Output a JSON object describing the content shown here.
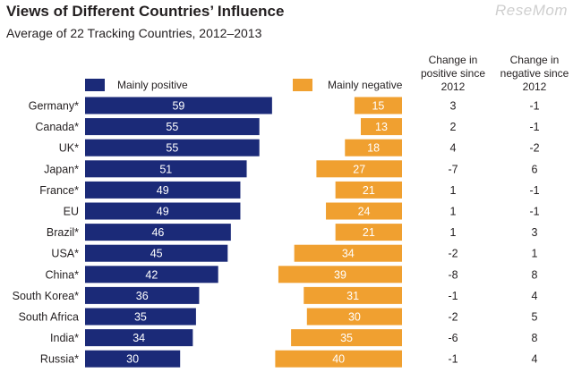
{
  "title": "Views of Different Countries’ Influence",
  "subtitle": "Average of 22 Tracking Countries, 2012–2013",
  "watermark": "ReseMom",
  "legend": {
    "positive": "Mainly positive",
    "negative": "Mainly negative"
  },
  "columns": {
    "pos_change": "Change in positive since 2012",
    "neg_change": "Change in negative since 2012"
  },
  "colors": {
    "positive": "#1b2a78",
    "negative": "#f0a030"
  },
  "chart_data": {
    "type": "bar",
    "title": "Views of Different Countries’ Influence",
    "subtitle": "Average of 22 Tracking Countries, 2012–2013",
    "categories": [
      "Germany*",
      "Canada*",
      "UK*",
      "Japan*",
      "France*",
      "EU",
      "Brazil*",
      "USA*",
      "China*",
      "South Korea*",
      "South Africa",
      "India*",
      "Russia*"
    ],
    "series": [
      {
        "name": "Mainly positive",
        "values": [
          59,
          55,
          55,
          51,
          49,
          49,
          46,
          45,
          42,
          36,
          35,
          34,
          30
        ]
      },
      {
        "name": "Mainly negative",
        "values": [
          15,
          13,
          18,
          27,
          21,
          24,
          21,
          34,
          39,
          31,
          30,
          35,
          40
        ]
      }
    ],
    "change_positive_since_2012": [
      "3",
      "2",
      "4",
      "-7",
      "1",
      "1",
      "1",
      "-2",
      "-8",
      "-1",
      "-2",
      "-6",
      "-1"
    ],
    "change_negative_since_2012": [
      "-1",
      "-1",
      "-2",
      "6",
      "-1",
      "-1",
      "3",
      "1",
      "8",
      "4",
      "5",
      "8",
      "4"
    ]
  }
}
